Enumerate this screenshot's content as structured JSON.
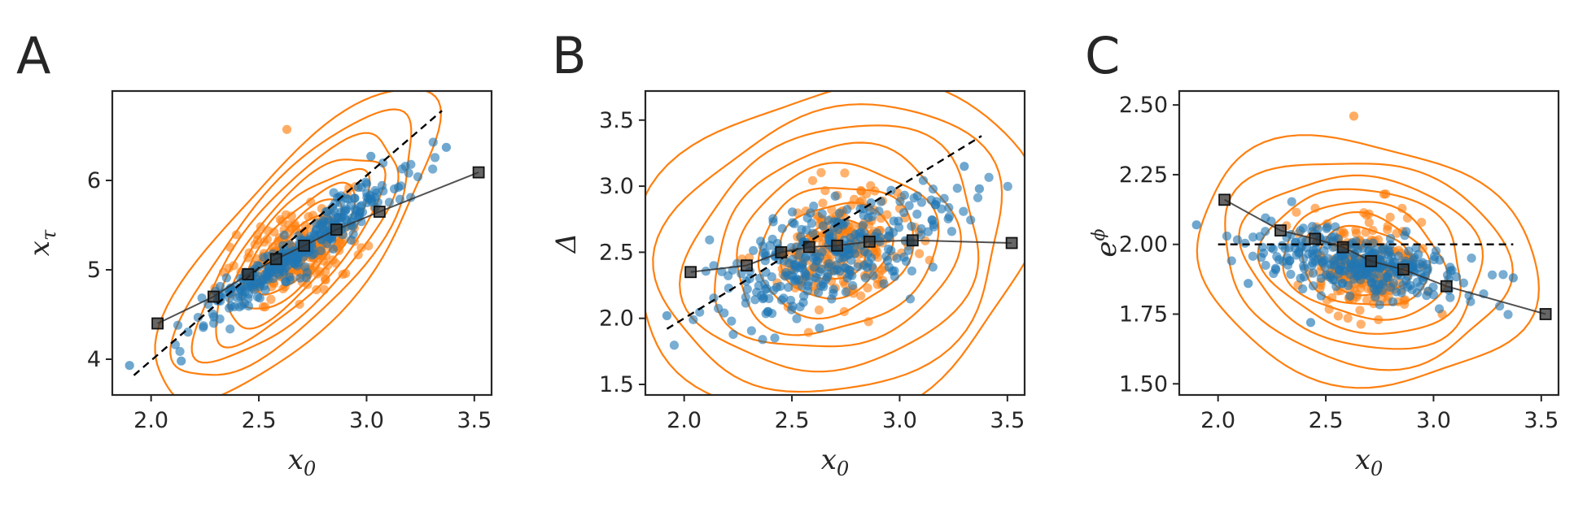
{
  "colors": {
    "orange": "#ff7f0e",
    "blue": "#1f77b4",
    "binned": "#333333",
    "reference": "#000000"
  },
  "chart_data": [
    {
      "type": "scatter",
      "panel": "A",
      "xlabel": {
        "base": "x",
        "sub": "0"
      },
      "ylabel": {
        "base": "x",
        "sub": "τ"
      },
      "xlim": [
        1.82,
        3.58
      ],
      "ylim": [
        3.6,
        7.0
      ],
      "xticks": [
        "2.0",
        "2.5",
        "3.0",
        "3.5"
      ],
      "yticks": [
        "4",
        "5",
        "6"
      ],
      "reference_line": {
        "style": "dashed",
        "points": [
          [
            1.92,
            3.82
          ],
          [
            3.35,
            6.78
          ]
        ]
      },
      "binned_means": [
        [
          2.03,
          4.4
        ],
        [
          2.29,
          4.7
        ],
        [
          2.45,
          4.95
        ],
        [
          2.58,
          5.12
        ],
        [
          2.71,
          5.27
        ],
        [
          2.86,
          5.45
        ],
        [
          3.06,
          5.65
        ],
        [
          3.52,
          6.09
        ]
      ],
      "contours": {
        "center": [
          2.68,
          5.25
        ],
        "axis_angle_deg": 49,
        "major_radii": [
          0.18,
          0.28,
          0.37,
          0.46,
          0.55,
          0.66,
          0.78,
          0.92
        ],
        "minor_ratio": 0.36,
        "color": "orange"
      },
      "orange_cloud": {
        "center": [
          2.68,
          5.2
        ],
        "spread": [
          0.14,
          0.22
        ],
        "count": 230,
        "outliers": [
          [
            2.63,
            6.57
          ]
        ]
      },
      "blue_cloud": {
        "center": [
          2.68,
          5.22
        ],
        "spread": [
          0.24,
          0.2
        ],
        "count": 300,
        "relation": {
          "slope": 1.7,
          "noise": 0.13
        },
        "outliers": [
          [
            1.9,
            3.93
          ],
          [
            2.14,
            3.98
          ],
          [
            3.37,
            6.37
          ],
          [
            3.02,
            6.27
          ]
        ]
      }
    },
    {
      "type": "scatter",
      "panel": "B",
      "xlabel": {
        "base": "x",
        "sub": "0"
      },
      "ylabel": {
        "base": "Δ"
      },
      "xlim": [
        1.82,
        3.58
      ],
      "ylim": [
        1.42,
        3.72
      ],
      "xticks": [
        "2.0",
        "2.5",
        "3.0",
        "3.5"
      ],
      "yticks": [
        "1.5",
        "2.0",
        "2.5",
        "3.0",
        "3.5"
      ],
      "reference_line": {
        "style": "dashed",
        "points": [
          [
            1.92,
            1.92
          ],
          [
            3.38,
            3.38
          ]
        ]
      },
      "binned_means": [
        [
          2.03,
          2.35
        ],
        [
          2.29,
          2.4
        ],
        [
          2.45,
          2.5
        ],
        [
          2.58,
          2.54
        ],
        [
          2.71,
          2.55
        ],
        [
          2.86,
          2.58
        ],
        [
          3.06,
          2.59
        ],
        [
          3.52,
          2.57
        ]
      ],
      "contours": {
        "center": [
          2.7,
          2.52
        ],
        "axis_angle_deg": 22,
        "major_radii": [
          0.17,
          0.27,
          0.37,
          0.48,
          0.58,
          0.7,
          0.82,
          0.96
        ],
        "minor_ratio": 0.78,
        "color": "orange"
      },
      "orange_cloud": {
        "center": [
          2.72,
          2.55
        ],
        "spread": [
          0.14,
          0.18
        ],
        "count": 230,
        "outliers": []
      },
      "blue_cloud": {
        "center": [
          2.7,
          2.5
        ],
        "spread": [
          0.27,
          0.24
        ],
        "count": 300,
        "relation": {
          "slope": 0.55,
          "noise": 0.2
        },
        "outliers": [
          [
            1.92,
            2.02
          ],
          [
            3.37,
            2.98
          ],
          [
            3.3,
            3.15
          ]
        ]
      }
    },
    {
      "type": "scatter",
      "panel": "C",
      "xlabel": {
        "base": "x",
        "sub": "0"
      },
      "ylabel": {
        "base": "e",
        "sup": "ϕ"
      },
      "xlim": [
        1.82,
        3.58
      ],
      "ylim": [
        1.46,
        2.55
      ],
      "xticks": [
        "2.0",
        "2.5",
        "3.0",
        "3.5"
      ],
      "yticks": [
        "1.50",
        "1.75",
        "2.00",
        "2.25",
        "2.50"
      ],
      "reference_line": {
        "style": "dashed",
        "points": [
          [
            2.0,
            2.0
          ],
          [
            3.37,
            2.0
          ]
        ]
      },
      "binned_means": [
        [
          2.03,
          2.16
        ],
        [
          2.29,
          2.05
        ],
        [
          2.45,
          2.02
        ],
        [
          2.58,
          1.99
        ],
        [
          2.71,
          1.94
        ],
        [
          2.86,
          1.91
        ],
        [
          3.06,
          1.85
        ],
        [
          3.52,
          1.75
        ]
      ],
      "contours": {
        "center": [
          2.68,
          1.94
        ],
        "axis_angle_deg": -12,
        "major_radii": [
          0.13,
          0.22,
          0.3,
          0.38,
          0.47,
          0.56,
          0.67,
          0.8
        ],
        "minor_ratio": 0.7,
        "color": "orange"
      },
      "orange_cloud": {
        "center": [
          2.68,
          1.92
        ],
        "spread": [
          0.13,
          0.08
        ],
        "count": 230,
        "outliers": [
          [
            2.63,
            2.46
          ],
          [
            2.77,
            2.18
          ],
          [
            3.04,
            1.75
          ]
        ]
      },
      "blue_cloud": {
        "center": [
          2.66,
          1.93
        ],
        "spread": [
          0.25,
          0.06
        ],
        "count": 300,
        "relation": {
          "slope": -0.12,
          "noise": 0.055
        },
        "outliers": [
          [
            1.9,
            2.07
          ],
          [
            2.14,
            1.86
          ],
          [
            3.37,
            1.88
          ],
          [
            2.43,
            1.72
          ]
        ]
      }
    }
  ],
  "panels": [
    {
      "label": "A"
    },
    {
      "label": "B"
    },
    {
      "label": "C"
    }
  ]
}
